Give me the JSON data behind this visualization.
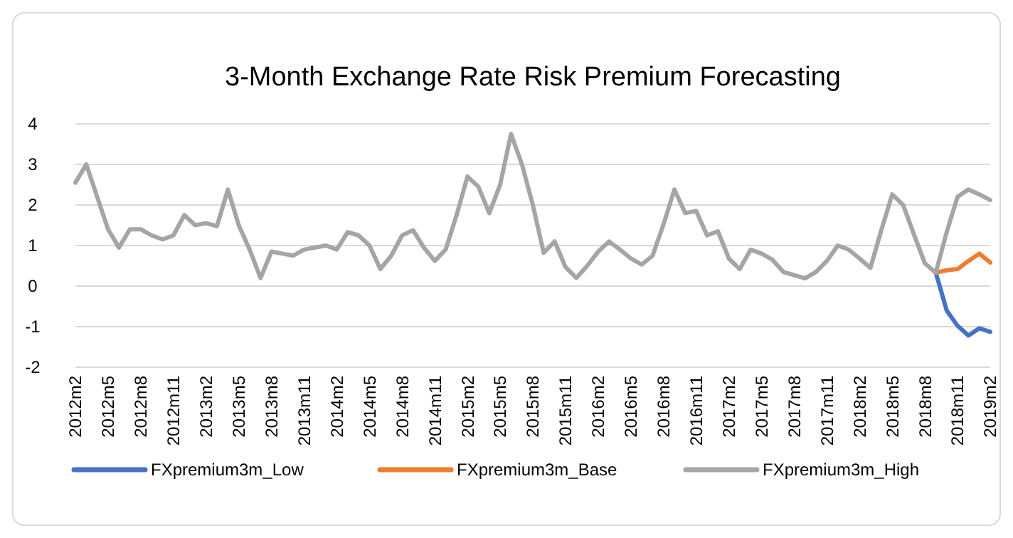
{
  "chart_data": {
    "type": "line",
    "title": "3-Month Exchange Rate Risk Premium Forecasting",
    "categories": [
      "2012m2",
      null,
      null,
      "2012m5",
      null,
      null,
      "2012m8",
      null,
      null,
      "2012m11",
      null,
      null,
      "2013m2",
      null,
      null,
      "2013m5",
      null,
      null,
      "2013m8",
      null,
      null,
      "2013m11",
      null,
      null,
      "2014m2",
      null,
      null,
      "2014m5",
      null,
      null,
      "2014m8",
      null,
      null,
      "2014m11",
      null,
      null,
      "2015m2",
      null,
      null,
      "2015m5",
      null,
      null,
      "2015m8",
      null,
      null,
      "2015m11",
      null,
      null,
      "2016m2",
      null,
      null,
      "2016m5",
      null,
      null,
      "2016m8",
      null,
      null,
      "2016m11",
      null,
      null,
      "2017m2",
      null,
      null,
      "2017m5",
      null,
      null,
      "2017m8",
      null,
      null,
      "2017m11",
      null,
      null,
      "2018m2",
      null,
      null,
      "2018m5",
      null,
      null,
      "2018m8",
      null,
      null,
      "2018m11",
      null,
      null,
      "2019m2"
    ],
    "series": [
      {
        "name": "FXpremium3m_Low",
        "color": "#4472c4",
        "values": [
          null,
          null,
          null,
          null,
          null,
          null,
          null,
          null,
          null,
          null,
          null,
          null,
          null,
          null,
          null,
          null,
          null,
          null,
          null,
          null,
          null,
          null,
          null,
          null,
          null,
          null,
          null,
          null,
          null,
          null,
          null,
          null,
          null,
          null,
          null,
          null,
          null,
          null,
          null,
          null,
          null,
          null,
          null,
          null,
          null,
          null,
          null,
          null,
          null,
          null,
          null,
          null,
          null,
          null,
          null,
          null,
          null,
          null,
          null,
          null,
          null,
          null,
          null,
          null,
          null,
          null,
          null,
          null,
          null,
          null,
          null,
          null,
          null,
          null,
          null,
          null,
          null,
          null,
          null,
          0.33,
          -0.6,
          -0.98,
          -1.22,
          -1.04,
          -1.13
        ]
      },
      {
        "name": "FXpremium3m_Base",
        "color": "#ed7d31",
        "values": [
          null,
          null,
          null,
          null,
          null,
          null,
          null,
          null,
          null,
          null,
          null,
          null,
          null,
          null,
          null,
          null,
          null,
          null,
          null,
          null,
          null,
          null,
          null,
          null,
          null,
          null,
          null,
          null,
          null,
          null,
          null,
          null,
          null,
          null,
          null,
          null,
          null,
          null,
          null,
          null,
          null,
          null,
          null,
          null,
          null,
          null,
          null,
          null,
          null,
          null,
          null,
          null,
          null,
          null,
          null,
          null,
          null,
          null,
          null,
          null,
          null,
          null,
          null,
          null,
          null,
          null,
          null,
          null,
          null,
          null,
          null,
          null,
          null,
          null,
          null,
          null,
          null,
          null,
          null,
          0.33,
          0.39,
          0.42,
          0.62,
          0.8,
          0.58
        ]
      },
      {
        "name": "FXpremium3m_High",
        "color": "#a5a5a5",
        "values": [
          2.55,
          3.0,
          2.2,
          1.4,
          0.95,
          1.4,
          1.4,
          1.25,
          1.15,
          1.25,
          1.75,
          1.5,
          1.55,
          1.48,
          2.38,
          1.5,
          0.9,
          0.2,
          0.85,
          0.8,
          0.75,
          0.9,
          0.95,
          1.0,
          0.9,
          1.33,
          1.25,
          1.0,
          0.42,
          0.75,
          1.25,
          1.38,
          0.95,
          0.62,
          0.9,
          1.75,
          2.7,
          2.45,
          1.8,
          2.5,
          3.75,
          3.0,
          2.0,
          0.82,
          1.1,
          0.47,
          0.2,
          0.5,
          0.85,
          1.1,
          0.9,
          0.68,
          0.53,
          0.75,
          1.52,
          2.38,
          1.8,
          1.85,
          1.25,
          1.35,
          0.68,
          0.42,
          0.9,
          0.8,
          0.65,
          0.35,
          0.27,
          0.19,
          0.35,
          0.62,
          1.0,
          0.9,
          0.68,
          0.45,
          1.38,
          2.26,
          2.0,
          1.27,
          0.56,
          0.33,
          1.33,
          2.2,
          2.38,
          2.26,
          2.12
        ]
      }
    ],
    "ylim": [
      -2,
      4
    ],
    "yticks": [
      -2,
      -1,
      0,
      1,
      2,
      3,
      4
    ],
    "grid": "y",
    "legend": "bottom"
  }
}
